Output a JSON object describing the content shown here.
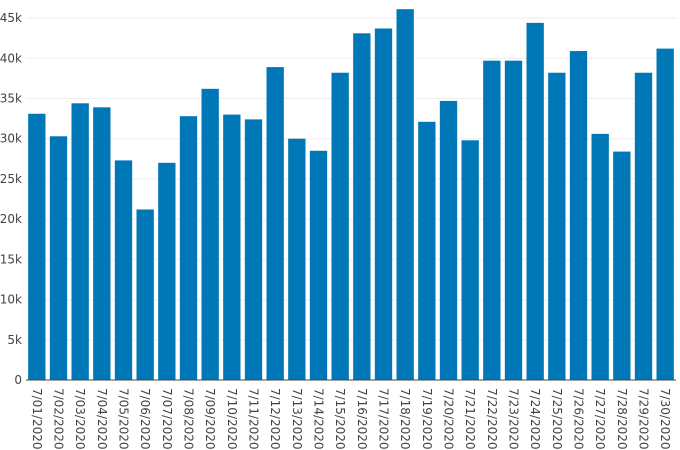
{
  "chart_data": {
    "type": "bar",
    "title": "",
    "xlabel": "",
    "ylabel": "",
    "bar_color": "#0077b6",
    "grid": true,
    "ylim": [
      0,
      46000
    ],
    "y_ticks": [
      0,
      5000,
      10000,
      15000,
      20000,
      25000,
      30000,
      35000,
      40000,
      45000
    ],
    "y_tick_labels": [
      "0",
      "5k",
      "10k",
      "15k",
      "20k",
      "25k",
      "30k",
      "35k",
      "40k",
      "45k"
    ],
    "categories": [
      "7/01/2020",
      "7/02/2020",
      "7/03/2020",
      "7/04/2020",
      "7/05/2020",
      "7/06/2020",
      "7/07/2020",
      "7/08/2020",
      "7/09/2020",
      "7/10/2020",
      "7/11/2020",
      "7/12/2020",
      "7/13/2020",
      "7/14/2020",
      "7/15/2020",
      "7/16/2020",
      "7/17/2020",
      "7/18/2020",
      "7/19/2020",
      "7/20/2020",
      "7/21/2020",
      "7/22/2020",
      "7/23/2020",
      "7/24/2020",
      "7/25/2020",
      "7/26/2020",
      "7/27/2020",
      "7/28/2020",
      "7/29/2020",
      "7/30/2020"
    ],
    "values": [
      33100,
      30300,
      34400,
      33900,
      27300,
      21200,
      27000,
      32800,
      36200,
      33000,
      32400,
      38900,
      30000,
      28500,
      38200,
      43100,
      43700,
      46100,
      32100,
      34700,
      29800,
      39700,
      39700,
      44400,
      38200,
      40900,
      30600,
      28400,
      38200,
      41200
    ]
  }
}
